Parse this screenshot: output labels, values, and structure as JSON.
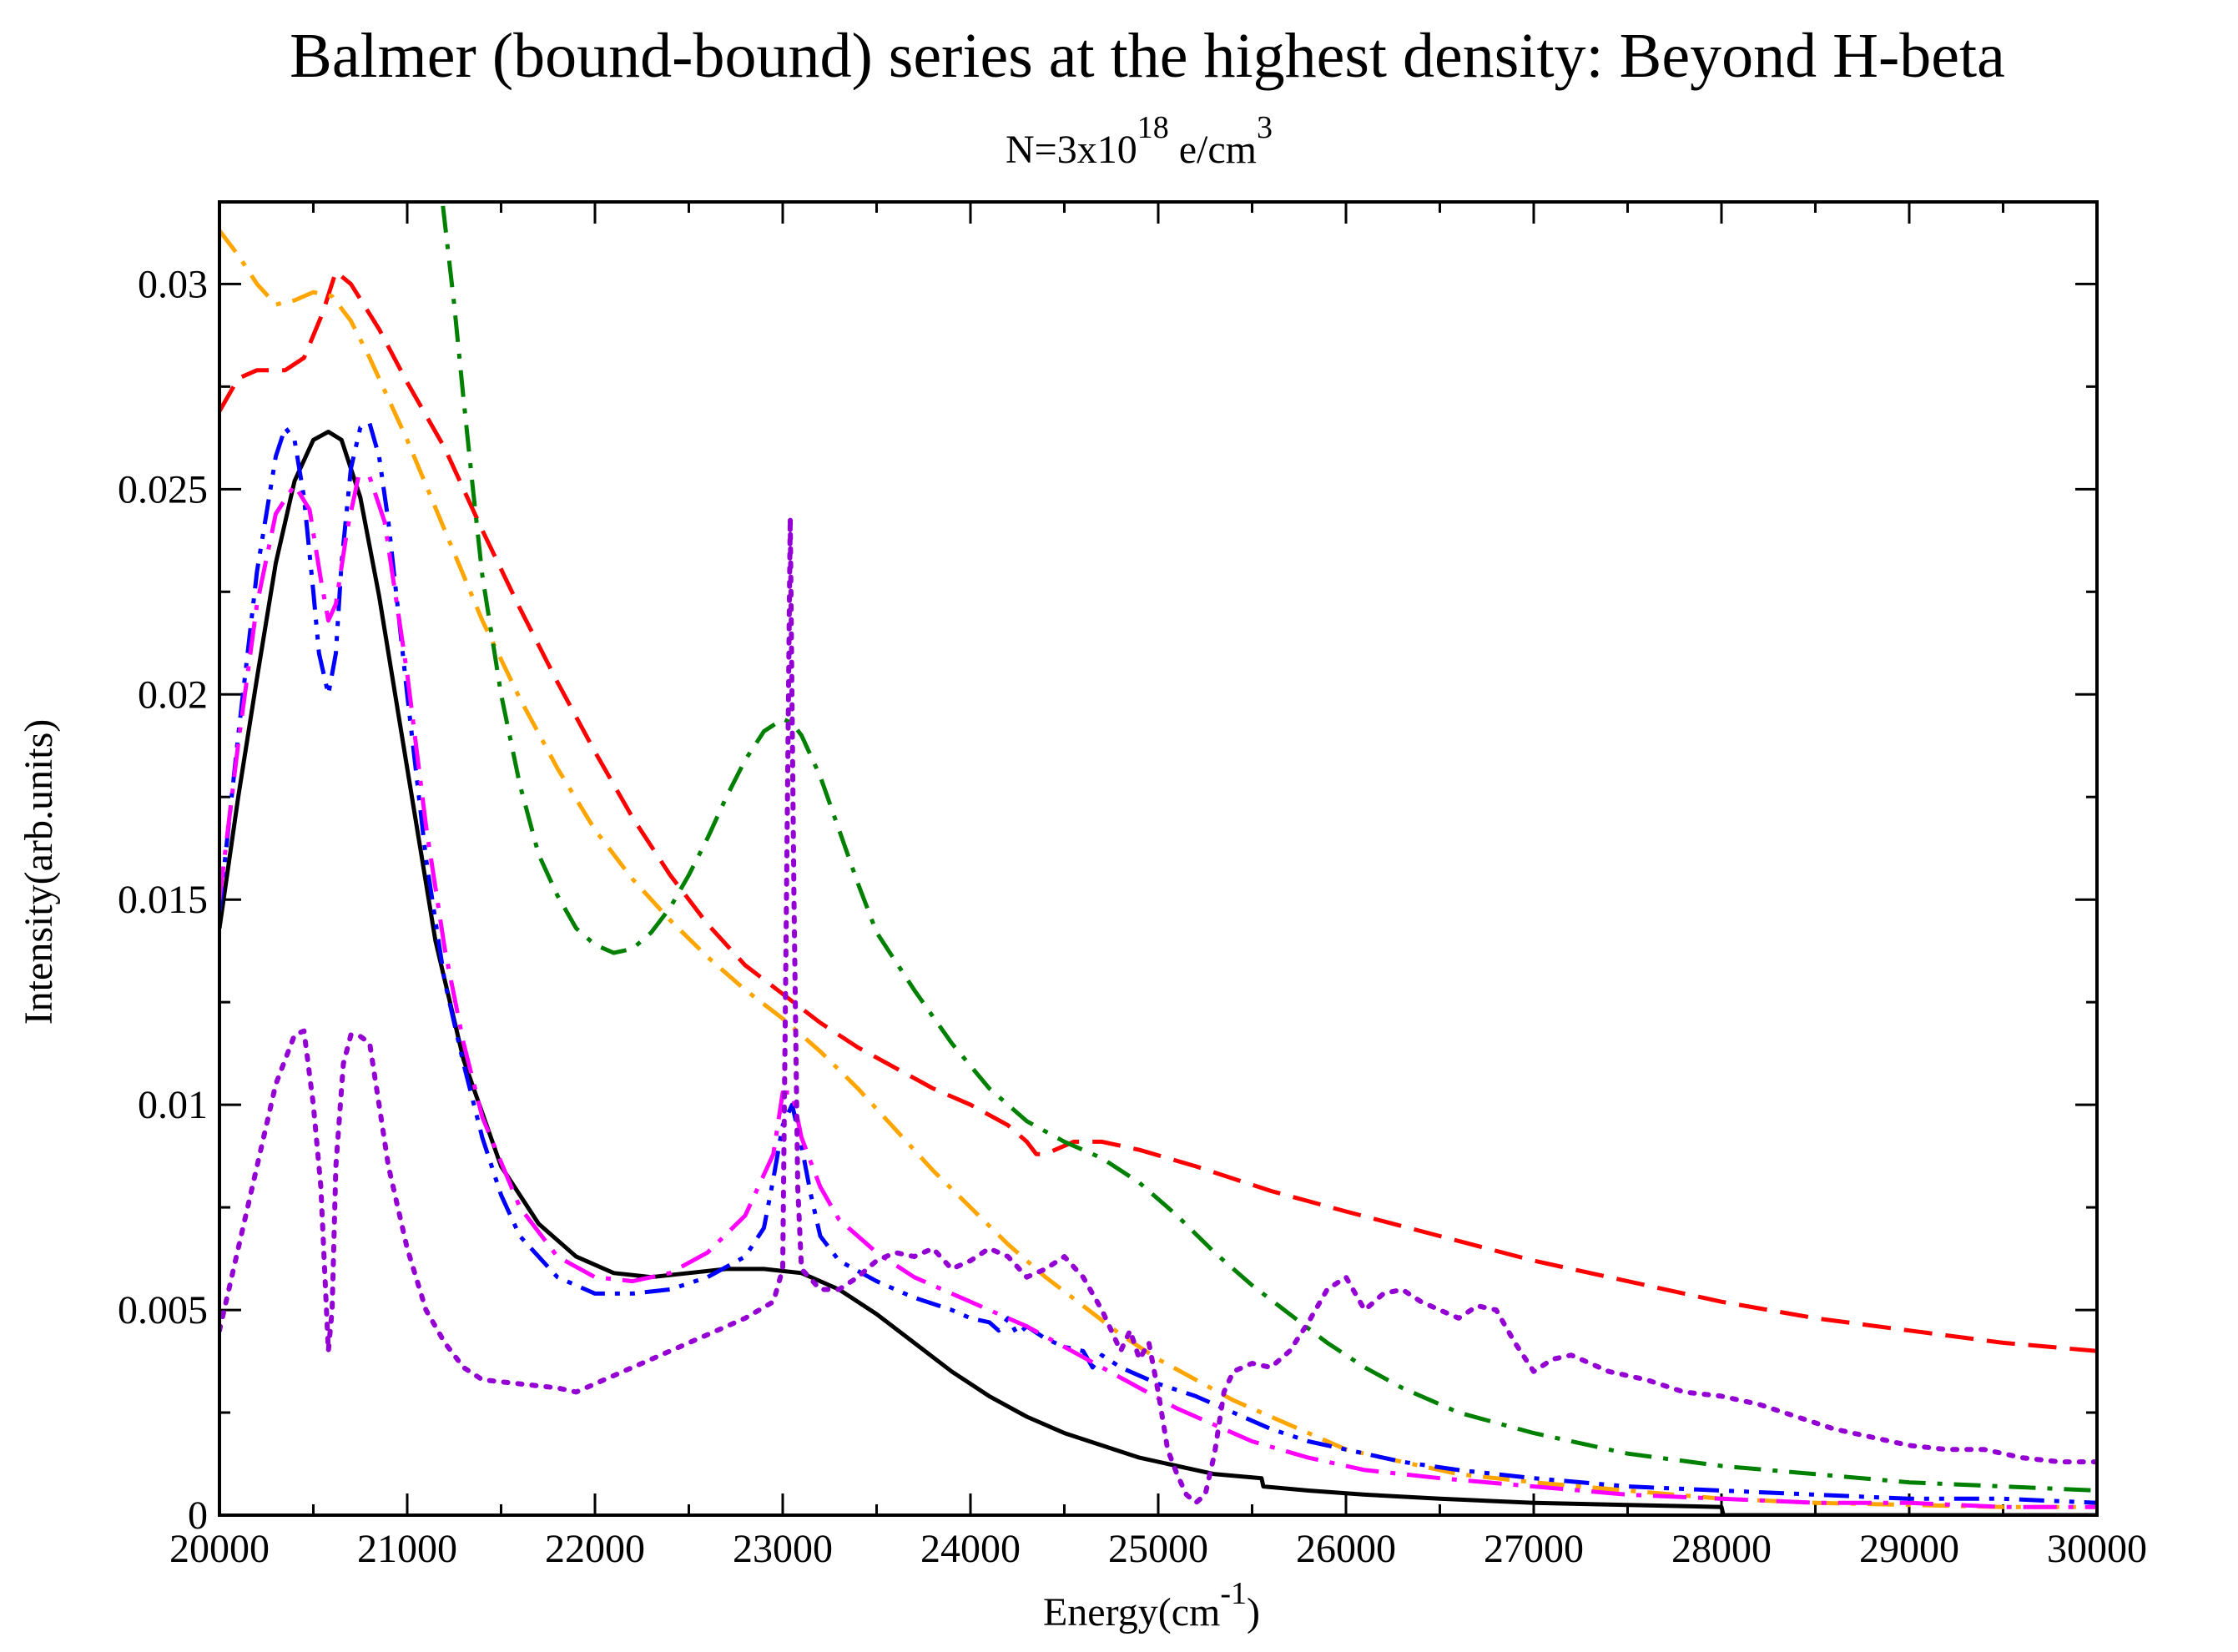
{
  "chart_data": {
    "type": "line",
    "title": "Balmer (bound-bound) series at the highest density: Beyond H-beta",
    "subtitle": {
      "prefix": "N=3x10",
      "exponent": "18",
      "middle": " e/cm",
      "unit_exponent": "3"
    },
    "xlabel": {
      "text": "Energy(cm",
      "exponent": "-1",
      "suffix": ")"
    },
    "ylabel": "Intensity(arb.units)",
    "xlim": [
      20000,
      30000
    ],
    "ylim": [
      0,
      0.032
    ],
    "xticks": [
      20000,
      21000,
      22000,
      23000,
      24000,
      25000,
      26000,
      27000,
      28000,
      29000,
      30000
    ],
    "xtick_labels": [
      "20000",
      "21000",
      "22000",
      "23000",
      "24000",
      "25000",
      "26000",
      "27000",
      "28000",
      "29000",
      "30000"
    ],
    "yticks": [
      0,
      0.005,
      0.01,
      0.015,
      0.02,
      0.025,
      0.03
    ],
    "ytick_labels": [
      "0",
      "0.005",
      "0.01",
      "0.015",
      "0.02",
      "0.025",
      "0.03"
    ],
    "legend": "none",
    "series": [
      {
        "name": "black-solid",
        "color": "#000000",
        "dash": "solid",
        "x": [
          20000,
          20100,
          20200,
          20300,
          20400,
          20500,
          20580,
          20650,
          20750,
          20850,
          21000,
          21150,
          21300,
          21500,
          21700,
          21900,
          22100,
          22300,
          22500,
          22700,
          22900,
          23100,
          23300,
          23500,
          23700,
          23900,
          24100,
          24300,
          24500,
          24700,
          24900,
          25100,
          25300,
          25550,
          25560,
          25800,
          26100,
          26500,
          27000,
          27500,
          28000,
          28010,
          28500,
          29000,
          30000
        ],
        "y": [
          0.0143,
          0.0175,
          0.0204,
          0.0232,
          0.0252,
          0.0262,
          0.0264,
          0.0262,
          0.0248,
          0.0224,
          0.0182,
          0.014,
          0.0111,
          0.0085,
          0.0071,
          0.0063,
          0.0059,
          0.0058,
          0.0059,
          0.006,
          0.006,
          0.0059,
          0.0055,
          0.0049,
          0.0042,
          0.0035,
          0.0029,
          0.0024,
          0.002,
          0.0017,
          0.0014,
          0.0012,
          0.001,
          0.0009,
          0.0007,
          0.0006,
          0.0005,
          0.0004,
          0.0003,
          0.00025,
          0.0002,
          0.0,
          0.0,
          0.0,
          0.0
        ]
      },
      {
        "name": "red-dashed",
        "color": "#ff0000",
        "dash": "long",
        "x": [
          20000,
          20100,
          20200,
          20350,
          20450,
          20550,
          20620,
          20700,
          20850,
          21000,
          21200,
          21400,
          21600,
          21800,
          22000,
          22200,
          22400,
          22600,
          22800,
          23000,
          23200,
          23400,
          23600,
          23800,
          24000,
          24200,
          24300,
          24350,
          24400,
          24450,
          24550,
          24700,
          24900,
          25200,
          25600,
          26000,
          26500,
          27000,
          27500,
          28000,
          28500,
          29000,
          29500,
          30000
        ],
        "y": [
          0.0269,
          0.0277,
          0.0279,
          0.0279,
          0.0282,
          0.0293,
          0.0303,
          0.03,
          0.0289,
          0.0276,
          0.026,
          0.024,
          0.0221,
          0.0203,
          0.0186,
          0.017,
          0.0156,
          0.0144,
          0.0134,
          0.0127,
          0.012,
          0.0114,
          0.0109,
          0.0104,
          0.01,
          0.0095,
          0.0091,
          0.0088,
          0.0088,
          0.0089,
          0.0091,
          0.0091,
          0.0089,
          0.0085,
          0.0079,
          0.0074,
          0.0068,
          0.0062,
          0.0057,
          0.0052,
          0.0048,
          0.0045,
          0.0042,
          0.004
        ]
      },
      {
        "name": "orange-dashdot",
        "color": "#ffa500",
        "dash": "dashdot",
        "x": [
          20000,
          20100,
          20200,
          20300,
          20400,
          20500,
          20600,
          20700,
          20800,
          21000,
          21200,
          21400,
          21600,
          21800,
          22000,
          22200,
          22400,
          22600,
          22800,
          23000,
          23200,
          23400,
          23600,
          23800,
          24000,
          24200,
          24400,
          24600,
          24800,
          25000,
          25200,
          25400,
          25600,
          25800,
          26000,
          26300,
          26600,
          27000,
          27500,
          28000,
          28500,
          29000,
          29500,
          30000
        ],
        "y": [
          0.0313,
          0.0307,
          0.03,
          0.0295,
          0.0296,
          0.0298,
          0.0297,
          0.0291,
          0.0282,
          0.0262,
          0.024,
          0.0218,
          0.0199,
          0.0182,
          0.0167,
          0.0155,
          0.0145,
          0.0136,
          0.0128,
          0.0121,
          0.0113,
          0.0104,
          0.0094,
          0.0084,
          0.0075,
          0.0066,
          0.0058,
          0.0051,
          0.0044,
          0.0038,
          0.0033,
          0.0028,
          0.0024,
          0.002,
          0.0016,
          0.0013,
          0.001,
          0.0008,
          0.0006,
          0.0004,
          0.0003,
          0.00025,
          0.0002,
          0.0002
        ]
      },
      {
        "name": "green-dashdot",
        "color": "#008000",
        "dash": "dashdot",
        "x": [
          21190,
          21250,
          21300,
          21350,
          21400,
          21500,
          21600,
          21700,
          21800,
          21900,
          22000,
          22100,
          22200,
          22300,
          22400,
          22500,
          22600,
          22700,
          22800,
          22900,
          23000,
          23050,
          23100,
          23200,
          23300,
          23400,
          23500,
          23700,
          23900,
          24100,
          24300,
          24500,
          24700,
          24900,
          25100,
          25300,
          25500,
          25700,
          25900,
          26100,
          26300,
          26600,
          27000,
          27500,
          28000,
          28500,
          29000,
          29500,
          30000
        ],
        "y": [
          0.0319,
          0.0295,
          0.0272,
          0.025,
          0.0229,
          0.02,
          0.0178,
          0.0161,
          0.0151,
          0.0143,
          0.0139,
          0.0137,
          0.0138,
          0.0142,
          0.0148,
          0.0156,
          0.0165,
          0.0175,
          0.0184,
          0.0191,
          0.0194,
          0.0193,
          0.019,
          0.018,
          0.0167,
          0.0154,
          0.0142,
          0.0128,
          0.0115,
          0.0104,
          0.0096,
          0.0091,
          0.0087,
          0.0081,
          0.0073,
          0.0064,
          0.0056,
          0.0049,
          0.0042,
          0.0036,
          0.0031,
          0.0025,
          0.002,
          0.0015,
          0.0012,
          0.001,
          0.0008,
          0.0007,
          0.0006
        ]
      },
      {
        "name": "blue-dashdotdot",
        "color": "#0000ff",
        "dash": "dashdotdot",
        "x": [
          20000,
          20100,
          20200,
          20300,
          20350,
          20400,
          20450,
          20500,
          20530,
          20580,
          20620,
          20650,
          20700,
          20750,
          20800,
          20850,
          20900,
          21000,
          21100,
          21200,
          21300,
          21400,
          21500,
          21600,
          21800,
          22000,
          22200,
          22400,
          22600,
          22800,
          22900,
          22950,
          23000,
          23050,
          23100,
          23150,
          23200,
          23300,
          23500,
          23700,
          23900,
          24000,
          24100,
          24150,
          24200,
          24250,
          24300,
          24400,
          24500,
          24600,
          24650,
          24700,
          24800,
          24900,
          25000,
          25200,
          25400,
          25600,
          25800,
          26000,
          26300,
          26600,
          27000,
          27500,
          28000,
          28500,
          29000,
          29500,
          30000
        ],
        "y": [
          0.0147,
          0.019,
          0.023,
          0.0258,
          0.0265,
          0.0262,
          0.0248,
          0.0225,
          0.021,
          0.02,
          0.021,
          0.0232,
          0.0255,
          0.0265,
          0.0266,
          0.0258,
          0.0242,
          0.02,
          0.016,
          0.013,
          0.011,
          0.0092,
          0.0078,
          0.0068,
          0.0058,
          0.0054,
          0.0054,
          0.0055,
          0.0058,
          0.0063,
          0.007,
          0.0082,
          0.0095,
          0.01,
          0.009,
          0.0078,
          0.0068,
          0.0062,
          0.0057,
          0.0053,
          0.005,
          0.0048,
          0.0047,
          0.0045,
          0.0048,
          0.0044,
          0.0046,
          0.0043,
          0.0041,
          0.004,
          0.0036,
          0.0039,
          0.0036,
          0.0034,
          0.0032,
          0.0029,
          0.0025,
          0.0021,
          0.0018,
          0.0016,
          0.0013,
          0.0011,
          0.0009,
          0.0007,
          0.0006,
          0.0005,
          0.0004,
          0.0004,
          0.0003
        ]
      },
      {
        "name": "magenta-dashdot",
        "color": "#ff00ff",
        "dash": "longdashdot",
        "x": [
          20000,
          20100,
          20200,
          20300,
          20400,
          20480,
          20540,
          20580,
          20620,
          20680,
          20740,
          20800,
          20880,
          21000,
          21100,
          21200,
          21300,
          21400,
          21600,
          21800,
          22000,
          22200,
          22400,
          22600,
          22800,
          22950,
          23000,
          23050,
          23100,
          23200,
          23300,
          23500,
          23700,
          23900,
          24100,
          24300,
          24500,
          24700,
          24900,
          25100,
          25300,
          25500,
          25800,
          26100,
          26500,
          27000,
          27500,
          28000,
          28500,
          29000,
          29500,
          30000
        ],
        "y": [
          0.015,
          0.0188,
          0.0222,
          0.0244,
          0.0251,
          0.0245,
          0.0228,
          0.0218,
          0.0222,
          0.024,
          0.0253,
          0.0253,
          0.0242,
          0.0205,
          0.0168,
          0.0138,
          0.0115,
          0.0097,
          0.0075,
          0.0063,
          0.0058,
          0.0057,
          0.0059,
          0.0064,
          0.0073,
          0.0088,
          0.0103,
          0.0103,
          0.0092,
          0.008,
          0.0072,
          0.0064,
          0.0058,
          0.0054,
          0.005,
          0.0046,
          0.0041,
          0.0036,
          0.0031,
          0.0026,
          0.0022,
          0.0018,
          0.0014,
          0.0011,
          0.0009,
          0.0007,
          0.0005,
          0.0004,
          0.0003,
          0.0003,
          0.0002,
          0.0002
        ]
      },
      {
        "name": "purple-dotted",
        "color": "#9400d3",
        "dash": "dotted",
        "x": [
          20000,
          20100,
          20200,
          20300,
          20400,
          20450,
          20500,
          20540,
          20580,
          20600,
          20620,
          20660,
          20700,
          20740,
          20800,
          20850,
          20900,
          21000,
          21100,
          21200,
          21300,
          21400,
          21600,
          21800,
          21900,
          22000,
          22200,
          22400,
          22600,
          22800,
          22950,
          23000,
          23020,
          23040,
          23060,
          23080,
          23100,
          23200,
          23300,
          23400,
          23500,
          23600,
          23700,
          23800,
          23900,
          24000,
          24100,
          24200,
          24300,
          24400,
          24500,
          24600,
          24700,
          24800,
          24850,
          24900,
          24950,
          25000,
          25050,
          25100,
          25150,
          25200,
          25250,
          25300,
          25350,
          25400,
          25500,
          25600,
          25700,
          25800,
          25900,
          26000,
          26100,
          26200,
          26300,
          26400,
          26500,
          26600,
          26700,
          26800,
          26900,
          27000,
          27100,
          27200,
          27400,
          27600,
          27800,
          28000,
          28200,
          28400,
          28600,
          28800,
          29000,
          29200,
          29400,
          29600,
          29800,
          30000
        ],
        "y": [
          0.0045,
          0.0065,
          0.0085,
          0.0105,
          0.0117,
          0.0118,
          0.01,
          0.008,
          0.004,
          0.005,
          0.0085,
          0.011,
          0.0117,
          0.0117,
          0.0115,
          0.01,
          0.0085,
          0.0065,
          0.005,
          0.0042,
          0.0036,
          0.0033,
          0.0032,
          0.0031,
          0.003,
          0.0032,
          0.0036,
          0.004,
          0.0044,
          0.0048,
          0.0052,
          0.006,
          0.015,
          0.0243,
          0.015,
          0.008,
          0.006,
          0.0055,
          0.0055,
          0.0058,
          0.0062,
          0.0064,
          0.0063,
          0.0065,
          0.006,
          0.0062,
          0.0065,
          0.0063,
          0.0058,
          0.006,
          0.0063,
          0.0058,
          0.005,
          0.004,
          0.0045,
          0.0038,
          0.0042,
          0.003,
          0.0016,
          0.001,
          0.0005,
          0.0003,
          0.0005,
          0.0015,
          0.003,
          0.0035,
          0.0037,
          0.0036,
          0.004,
          0.0047,
          0.0055,
          0.0058,
          0.005,
          0.0054,
          0.0055,
          0.0052,
          0.005,
          0.0048,
          0.0051,
          0.005,
          0.0042,
          0.0035,
          0.0038,
          0.0039,
          0.0035,
          0.0033,
          0.003,
          0.0029,
          0.0027,
          0.0024,
          0.0021,
          0.0019,
          0.0017,
          0.0016,
          0.0016,
          0.0014,
          0.0013,
          0.0013
        ]
      }
    ]
  }
}
